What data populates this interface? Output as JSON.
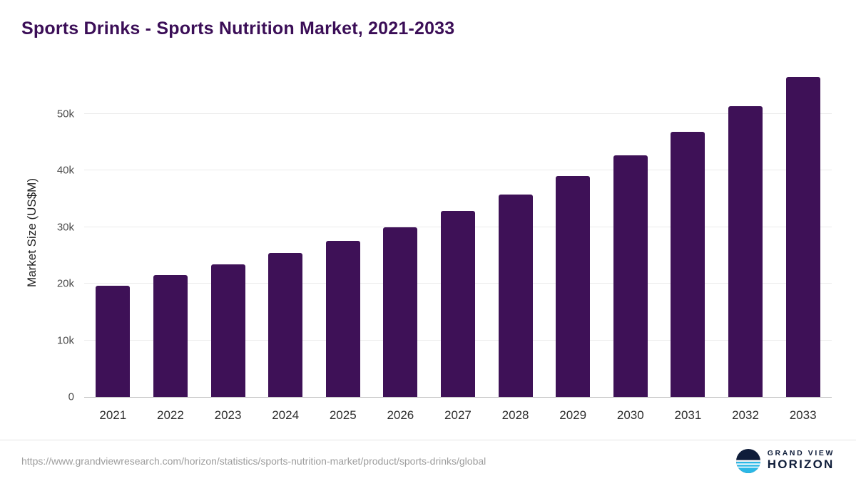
{
  "page": {
    "title": "Sports Drinks - Sports Nutrition Market, 2021-2033",
    "source_url": "https://www.grandviewresearch.com/horizon/statistics/sports-nutrition-market/product/sports-drinks/global",
    "brand": {
      "line1": "GRAND VIEW",
      "line2": "HORIZON"
    }
  },
  "chart_data": {
    "type": "bar",
    "title": "Sports Drinks - Sports Nutrition Market, 2021-2033",
    "categories": [
      "2021",
      "2022",
      "2023",
      "2024",
      "2025",
      "2026",
      "2027",
      "2028",
      "2029",
      "2030",
      "2031",
      "2032",
      "2033"
    ],
    "values": [
      19600,
      21500,
      23400,
      25400,
      27600,
      30000,
      32800,
      35700,
      39000,
      42700,
      46800,
      51300,
      56500
    ],
    "xlabel": "",
    "ylabel": "Market Size (US$M)",
    "ylim": [
      0,
      58000
    ],
    "y_ticks": [
      0,
      10000,
      20000,
      30000,
      40000,
      50000
    ],
    "y_tick_labels": [
      "0",
      "10k",
      "20k",
      "30k",
      "40k",
      "50k"
    ],
    "grid": true,
    "legend": "none",
    "bar_color": "#3e1157",
    "title_color": "#3b0e57"
  }
}
